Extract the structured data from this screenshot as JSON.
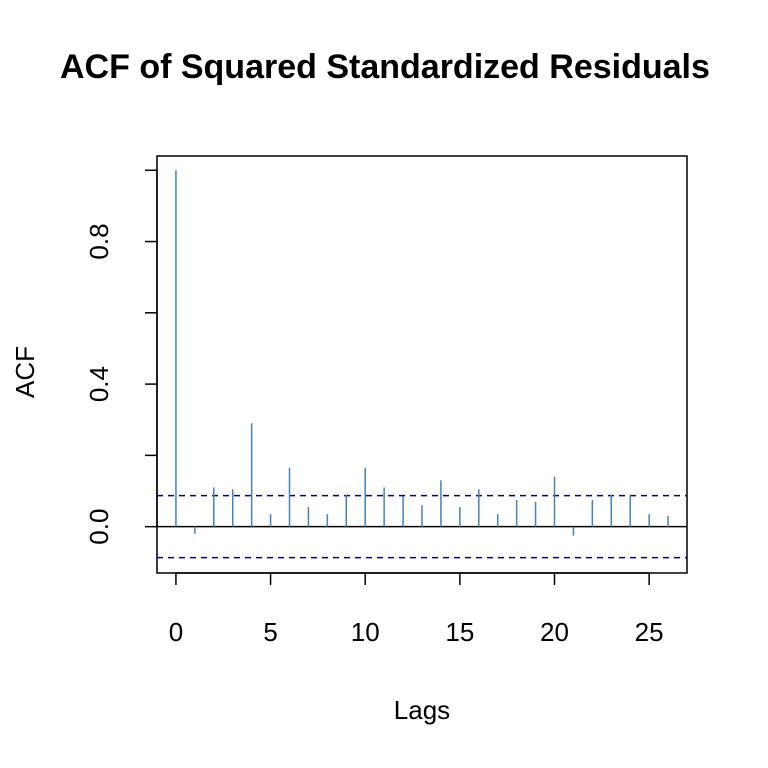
{
  "chart_data": {
    "type": "bar",
    "title": "ACF of Squared Standardized Residuals",
    "xlabel": "Lags",
    "ylabel": "ACF",
    "xlim": [
      -1,
      27
    ],
    "ylim": [
      -0.13,
      1.04
    ],
    "x_ticks": [
      0,
      5,
      10,
      15,
      20,
      25
    ],
    "x_tick_labels": [
      "0",
      "5",
      "10",
      "15",
      "20",
      "25"
    ],
    "y_ticks": [
      0.0,
      0.2,
      0.4,
      0.6,
      0.8,
      1.0
    ],
    "y_tick_labels": [
      "0.0",
      "",
      "0.4",
      "",
      "0.8",
      ""
    ],
    "lags": [
      0,
      1,
      2,
      3,
      4,
      5,
      6,
      7,
      8,
      9,
      10,
      11,
      12,
      13,
      14,
      15,
      16,
      17,
      18,
      19,
      20,
      21,
      22,
      23,
      24,
      25,
      26
    ],
    "values": [
      1.0,
      -0.02,
      0.11,
      0.105,
      0.29,
      0.035,
      0.165,
      0.055,
      0.035,
      0.09,
      0.165,
      0.11,
      0.085,
      0.06,
      0.13,
      0.055,
      0.105,
      0.035,
      0.075,
      0.07,
      0.14,
      -0.025,
      0.075,
      0.09,
      0.09,
      0.035,
      0.03
    ],
    "confidence_band": [
      -0.087,
      0.087
    ],
    "grid": false,
    "colors": {
      "bars": "#4682b4",
      "confidence": "#00008b",
      "axis": "#000000"
    }
  }
}
